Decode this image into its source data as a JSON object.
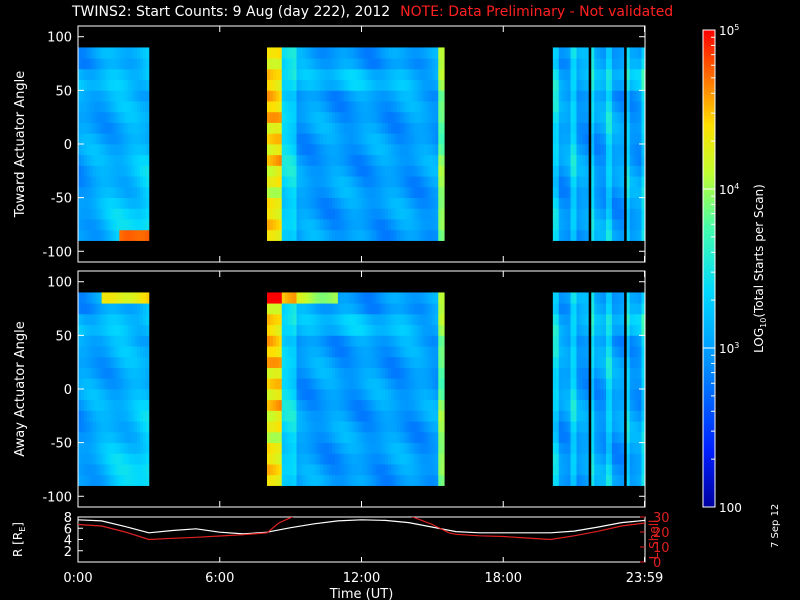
{
  "header": {
    "title": "TWINS2: Start Counts:  9 Aug (day 222), 2012",
    "note": "NOTE: Data Preliminary - Not validated"
  },
  "date_stamp": "7 Sep 12",
  "colors": {
    "background": "#000000",
    "axes": "#ffffff",
    "note": "#ff2020",
    "lshell": "#e02020",
    "radius": "#ffffff"
  },
  "chart_data": [
    {
      "type": "heatmap",
      "ylabel": "Toward Actuator Angle",
      "ylim": [
        -110,
        110
      ],
      "yticks": [
        "100",
        "50",
        "0",
        "-50",
        "-100"
      ],
      "xlim": [
        0,
        24
      ],
      "data_windows_ut": [
        [
          0.0,
          3.0
        ],
        [
          8.0,
          15.5
        ],
        [
          20.1,
          24.0
        ]
      ],
      "angle_range": [
        -90,
        90
      ],
      "features": "Mostly blue counts (~10^2.5-10^3) with a bright yellow/red band near 8-8.5 UT and an orange patch near -90 deg around 2-3 UT"
    },
    {
      "type": "heatmap",
      "ylabel": "Away Actuator Angle",
      "ylim": [
        -110,
        110
      ],
      "yticks": [
        "100",
        "50",
        "0",
        "-50",
        "-100"
      ],
      "xlim": [
        0,
        24
      ],
      "data_windows_ut": [
        [
          0.0,
          3.0
        ],
        [
          8.0,
          15.5
        ],
        [
          20.1,
          24.0
        ]
      ],
      "angle_range": [
        -90,
        90
      ],
      "features": "Bright orange/red band at 8-8.5 UT, orange band near +90 deg at 1-3 UT and 8-11 UT"
    },
    {
      "type": "line",
      "ylabel": "R [R",
      "ylabel_sub": "E",
      "ylabel_end": "]",
      "y2label": "L Shell",
      "ylim": [
        0,
        8
      ],
      "y2lim": [
        0,
        30
      ],
      "yticks": [
        "8",
        "6",
        "4",
        "2"
      ],
      "y2ticks": [
        "30",
        "20",
        "10",
        "0"
      ],
      "xlabel": "Time (UT)",
      "xticks": [
        "0:00",
        "6:00",
        "12:00",
        "18:00",
        "23:59"
      ],
      "xlim": [
        0,
        24
      ],
      "series": [
        {
          "x": [
            0,
            1,
            2,
            3,
            4,
            5,
            6,
            7,
            8,
            9,
            10,
            11,
            12,
            13,
            14,
            15,
            16,
            17,
            18,
            19,
            20,
            21,
            22,
            23,
            24
          ],
          "y": [
            7.5,
            7.3,
            6.3,
            5.2,
            5.6,
            5.9,
            5.3,
            5.0,
            5.3,
            6.1,
            6.8,
            7.3,
            7.5,
            7.4,
            7.0,
            6.2,
            5.4,
            5.2,
            5.2,
            5.2,
            5.2,
            5.5,
            6.2,
            7.0,
            7.4
          ]
        },
        {
          "x": [
            0,
            1,
            2,
            3,
            4,
            5,
            6,
            7,
            8,
            8.5,
            9.2,
            14.0,
            15.0,
            15.7,
            16,
            17,
            18,
            19,
            20,
            21,
            22,
            23,
            24
          ],
          "y2": [
            25,
            24,
            20,
            15,
            15.8,
            16.5,
            17.3,
            18.2,
            19.5,
            26,
            31,
            31,
            25,
            19.5,
            18.5,
            17.5,
            17,
            16,
            15,
            17.5,
            20.5,
            24,
            26
          ]
        }
      ]
    }
  ],
  "colorbar": {
    "label_pre": "LOG",
    "label_sub": "10",
    "label_post": "(Total Starts per Scan)",
    "ticks": [
      {
        "value": 5,
        "label": "10",
        "exp": "5"
      },
      {
        "value": 4,
        "label": "10",
        "exp": "4"
      },
      {
        "value": 3,
        "label": "10",
        "exp": "3"
      },
      {
        "value": 2,
        "label": "100",
        "exp": ""
      }
    ],
    "range": [
      2,
      5
    ]
  }
}
